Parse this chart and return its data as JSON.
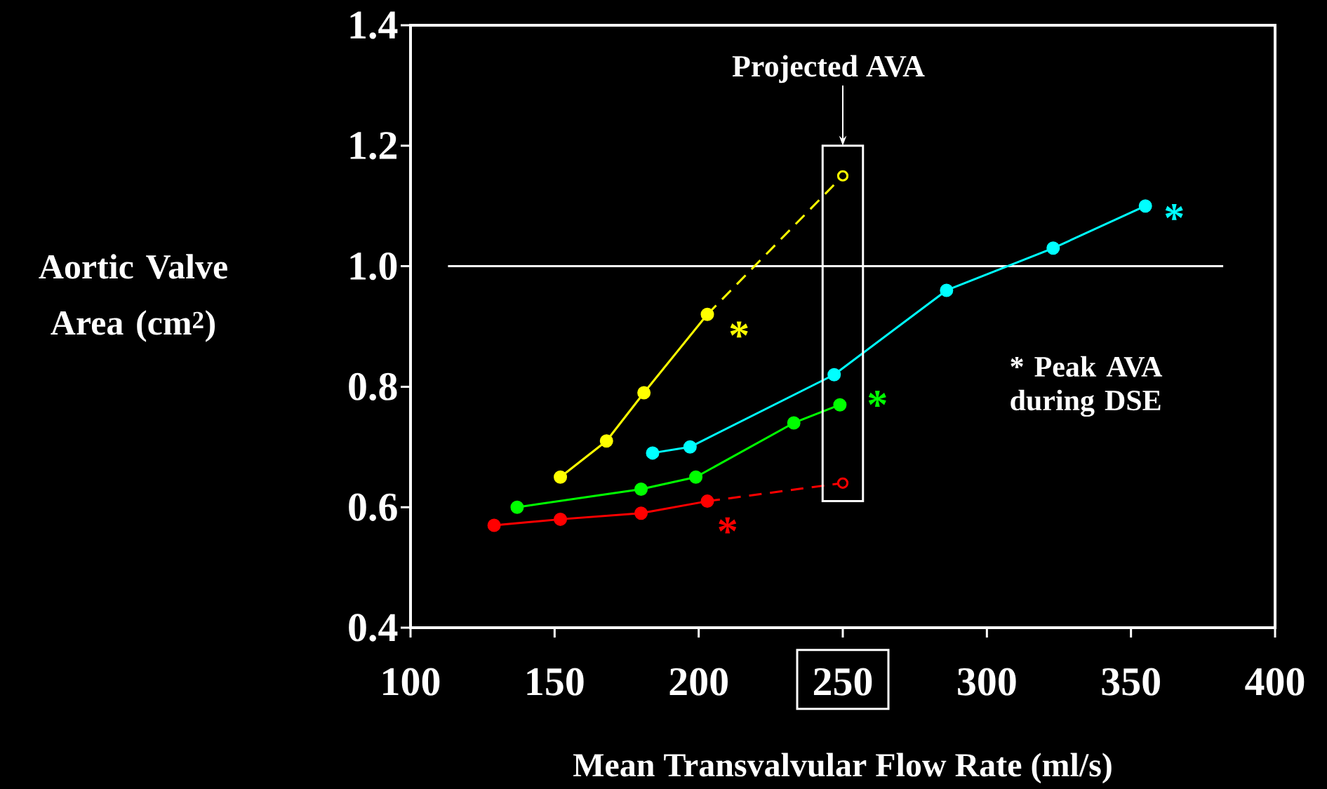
{
  "chart_data": {
    "type": "line",
    "xlabel": "Mean Transvalvular Flow Rate (ml/s)",
    "ylabel": "Aortic Valve Area (cm$^{2}$)",
    "xlim": [
      100,
      400
    ],
    "xticks": [
      100,
      150,
      200,
      250,
      300,
      350,
      400
    ],
    "ylim": [
      0.4,
      1.4
    ],
    "yticks": [
      {
        "value": 0.4,
        "label": "0.4"
      },
      {
        "value": 0.6,
        "label": "0.6"
      },
      {
        "value": 0.8,
        "label": "0.8"
      },
      {
        "value": 1.0,
        "label": "1.0"
      },
      {
        "value": 1.2,
        "label": "1.2"
      },
      {
        "value": 1.4,
        "label": "1.4"
      }
    ],
    "marker": "circle",
    "grid": false,
    "series": [
      {
        "color": "#ffff00",
        "line_style": "dashed",
        "x": [
          203,
          250
        ],
        "values": [
          0.92,
          1.15
        ]
      },
      {
        "color": "#ff0000",
        "line_style": "dashed",
        "x": [
          203,
          250
        ],
        "values": [
          0.61,
          0.64
        ]
      },
      {
        "color": "#ffff00",
        "line_style": "solid",
        "x": [
          152,
          168,
          181,
          203
        ],
        "values": [
          0.65,
          0.71,
          0.79,
          0.92
        ]
      },
      {
        "color": "#00ffff",
        "line_style": "solid",
        "x": [
          184,
          197,
          247,
          286,
          323,
          355
        ],
        "values": [
          0.69,
          0.7,
          0.82,
          0.96,
          1.03,
          1.1
        ]
      },
      {
        "color": "#00ff00",
        "line_style": "solid",
        "x": [
          137,
          180,
          199,
          233,
          249
        ],
        "values": [
          0.6,
          0.63,
          0.65,
          0.74,
          0.77
        ]
      },
      {
        "color": "#ff0000",
        "line_style": "solid",
        "x": [
          129,
          152,
          180,
          203
        ],
        "values": [
          0.57,
          0.58,
          0.59,
          0.61
        ]
      }
    ],
    "ref_lines": [
      {
        "axis": "y",
        "value": 1.0,
        "color": "#ffffff"
      }
    ],
    "annotations": [
      "Projected AVA",
      "*",
      "*",
      "*",
      "*",
      "* Peak AVA during DSE"
    ]
  }
}
